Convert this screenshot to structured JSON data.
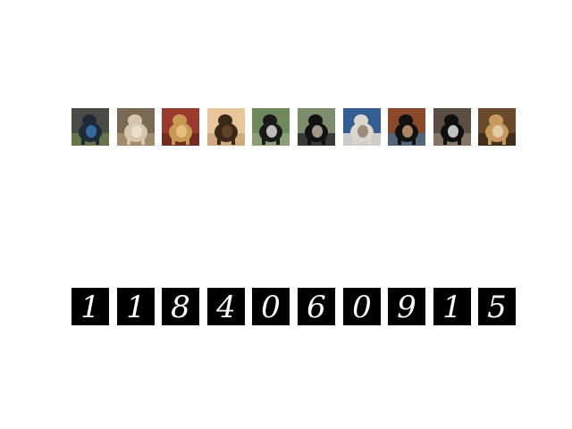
{
  "colors": {
    "background": "#ffffff",
    "digit_background": "#000000",
    "digit_stroke": "#ffffff"
  },
  "dog_images": [
    {
      "name": "dog-thumbnail-1",
      "palette": [
        "#4a4b44",
        "#1e2a3a",
        "#3a7bb8",
        "#6c7a4a"
      ]
    },
    {
      "name": "dog-thumbnail-2",
      "palette": [
        "#7a6a55",
        "#d6c7ac",
        "#efe5d0",
        "#a88f70"
      ]
    },
    {
      "name": "dog-thumbnail-3",
      "palette": [
        "#9a3b2e",
        "#c89a52",
        "#e9c98b",
        "#6d2a1f"
      ]
    },
    {
      "name": "dog-thumbnail-4",
      "palette": [
        "#e8c89a",
        "#3a2818",
        "#6b4a2e",
        "#caa67a"
      ]
    },
    {
      "name": "dog-thumbnail-5",
      "palette": [
        "#6f8a5a",
        "#1a1a1a",
        "#e6e6e6",
        "#8fa27a"
      ]
    },
    {
      "name": "dog-thumbnail-6",
      "palette": [
        "#7d8d6b",
        "#121212",
        "#c7b9a5",
        "#2b2b2b"
      ]
    },
    {
      "name": "dog-thumbnail-7",
      "palette": [
        "#345f92",
        "#dcd6cc",
        "#8a7a66",
        "#e8e2d6"
      ]
    },
    {
      "name": "dog-thumbnail-8",
      "palette": [
        "#8a4a2a",
        "#111111",
        "#cfa27c",
        "#4a6a8a"
      ]
    },
    {
      "name": "dog-thumbnail-9",
      "palette": [
        "#5a4e42",
        "#0f0f0f",
        "#efefef",
        "#8a7c6a"
      ]
    },
    {
      "name": "dog-thumbnail-10",
      "palette": [
        "#6a4a2a",
        "#c8995e",
        "#e7d6b8",
        "#3a2a1a"
      ]
    }
  ],
  "digits": [
    {
      "value": "1"
    },
    {
      "value": "1"
    },
    {
      "value": "8"
    },
    {
      "value": "4"
    },
    {
      "value": "0"
    },
    {
      "value": "6"
    },
    {
      "value": "0"
    },
    {
      "value": "9"
    },
    {
      "value": "1"
    },
    {
      "value": "5"
    }
  ]
}
